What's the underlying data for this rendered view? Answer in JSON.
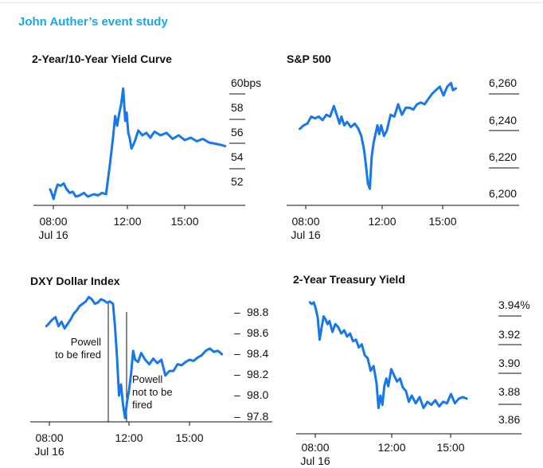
{
  "heading": "John Authers event study",
  "chart_data": [
    {
      "type": "line",
      "title": "2-Year/10-Year Yield Curve",
      "x_ticks": [
        "08:00",
        "12:00",
        "15:00"
      ],
      "x_sublabel": "Jul 16",
      "y_ticks": [
        "60bps",
        "58",
        "56",
        "54",
        "52"
      ],
      "ylim": [
        51,
        61
      ],
      "y_axis_side": "right",
      "series": [
        {
          "x": [
            7.83,
            7.9,
            8.0,
            8.1,
            8.2,
            8.35,
            8.5,
            8.65,
            8.8,
            8.95,
            9.1,
            9.3,
            9.5,
            9.7,
            9.85,
            10.0,
            10.2,
            10.4,
            10.6,
            10.8,
            10.95,
            11.05,
            11.15,
            11.25,
            11.35,
            11.45,
            11.55,
            11.62,
            11.7,
            11.78,
            11.86,
            11.95,
            12.05,
            12.2,
            12.4,
            12.6,
            12.8,
            13.0,
            13.3,
            13.6,
            13.9,
            14.2,
            14.5,
            14.8,
            15.1,
            15.4,
            15.7,
            16.0,
            16.3,
            16.5
          ],
          "y": [
            51.8,
            51.5,
            51.0,
            51.7,
            52.2,
            52.1,
            52.3,
            51.8,
            51.5,
            51.6,
            51.2,
            51.3,
            51.5,
            51.2,
            51.3,
            51.4,
            51.3,
            51.5,
            51.4,
            54.0,
            56.2,
            57.9,
            57.1,
            58.1,
            58.9,
            60.2,
            57.5,
            58.2,
            56.5,
            56.0,
            55.2,
            55.5,
            55.9,
            56.7,
            56.3,
            56.5,
            56.1,
            56.6,
            56.3,
            56.5,
            56.0,
            56.3,
            55.9,
            56.1,
            55.8,
            56.0,
            55.7,
            55.6,
            55.5,
            55.4
          ]
        }
      ]
    },
    {
      "type": "line",
      "title": "S&P 500",
      "x_ticks": [
        "08:00",
        "12:00",
        "15:00"
      ],
      "x_sublabel": "Jul 16",
      "y_ticks": [
        "6,260",
        "6,240",
        "6,220",
        "6,200"
      ],
      "ylim": [
        6198,
        6264
      ],
      "y_axis_side": "right",
      "series": [
        {
          "x": [
            7.9,
            8.1,
            8.3,
            8.5,
            8.7,
            8.9,
            9.1,
            9.3,
            9.5,
            9.7,
            9.85,
            10.0,
            10.1,
            10.25,
            10.4,
            10.6,
            10.8,
            11.0,
            11.15,
            11.3,
            11.4,
            11.5,
            11.6,
            11.7,
            11.8,
            11.9,
            12.0,
            12.1,
            12.2,
            12.35,
            12.5,
            12.7,
            12.9,
            13.1,
            13.3,
            13.5,
            13.7,
            13.9,
            14.1,
            14.3,
            14.5,
            14.7,
            14.9,
            15.1,
            15.3,
            15.5,
            15.7,
            15.9,
            16.0,
            16.15
          ],
          "y": [
            6236,
            6238,
            6239,
            6243,
            6242,
            6243,
            6241,
            6244,
            6243,
            6249,
            6244,
            6239,
            6243,
            6238,
            6240,
            6237,
            6239,
            6236,
            6232,
            6224,
            6215,
            6205,
            6202,
            6220,
            6228,
            6233,
            6238,
            6233,
            6238,
            6232,
            6235,
            6244,
            6243,
            6250,
            6244,
            6248,
            6248,
            6247,
            6250,
            6251,
            6250,
            6253,
            6256,
            6258,
            6260,
            6255,
            6260,
            6262,
            6258,
            6259
          ]
        }
      ]
    },
    {
      "type": "line",
      "title": "DXY Dollar Index",
      "x_ticks": [
        "08:00",
        "12:00",
        "15:00"
      ],
      "x_sublabel": "Jul 16",
      "y_ticks": [
        "98.8",
        "98.6",
        "98.4",
        "98.2",
        "98.0",
        "97.8"
      ],
      "ylim": [
        97.78,
        98.86
      ],
      "y_axis_side": "right",
      "annotations": [
        {
          "text": [
            "Powell",
            "to be fired"
          ],
          "x": 11.05
        },
        {
          "text": [
            "Powell",
            "not to be",
            "fired"
          ],
          "x": 11.95
        }
      ],
      "series": [
        {
          "x": [
            7.8,
            7.95,
            8.1,
            8.25,
            8.4,
            8.55,
            8.7,
            8.85,
            9.0,
            9.15,
            9.3,
            9.45,
            9.6,
            9.75,
            9.9,
            10.05,
            10.2,
            10.35,
            10.5,
            10.65,
            10.8,
            10.95,
            11.1,
            11.2,
            11.3,
            11.4,
            11.5,
            11.6,
            11.7,
            11.8,
            11.9,
            12.0,
            12.1,
            12.2,
            12.35,
            12.5,
            12.7,
            12.9,
            13.1,
            13.3,
            13.5,
            13.7,
            13.9,
            14.1,
            14.3,
            14.5,
            14.7,
            14.9,
            15.1,
            15.3,
            15.5,
            15.7,
            15.9,
            16.1,
            16.3,
            16.5
          ],
          "y": [
            98.62,
            98.65,
            98.68,
            98.7,
            98.62,
            98.66,
            98.6,
            98.64,
            98.68,
            98.73,
            98.76,
            98.8,
            98.82,
            98.84,
            98.88,
            98.86,
            98.82,
            98.83,
            98.86,
            98.85,
            98.83,
            98.84,
            98.82,
            98.62,
            98.35,
            98.0,
            98.1,
            97.92,
            97.8,
            97.95,
            98.05,
            98.2,
            98.4,
            98.32,
            98.3,
            98.38,
            98.32,
            98.28,
            98.33,
            98.29,
            98.32,
            98.18,
            98.22,
            98.22,
            98.28,
            98.27,
            98.3,
            98.32,
            98.31,
            98.34,
            98.36,
            98.4,
            98.42,
            98.39,
            98.4,
            98.37
          ]
        }
      ]
    },
    {
      "type": "line",
      "title": "2-Year Treasury Yield",
      "x_ticks": [
        "08:00",
        "12:00",
        "15:00"
      ],
      "x_sublabel": "Jul 16",
      "y_ticks": [
        "3.94%",
        "3.92",
        "3.90",
        "3.88",
        "3.86"
      ],
      "ylim": [
        3.865,
        3.945
      ],
      "y_axis_side": "right",
      "series": [
        {
          "x": [
            8.0,
            8.1,
            8.2,
            8.3,
            8.4,
            8.5,
            8.6,
            8.7,
            8.8,
            8.9,
            9.0,
            9.15,
            9.3,
            9.45,
            9.6,
            9.75,
            9.9,
            10.05,
            10.2,
            10.35,
            10.5,
            10.65,
            10.8,
            10.95,
            11.1,
            11.25,
            11.4,
            11.5,
            11.6,
            11.7,
            11.8,
            11.9,
            12.0,
            12.15,
            12.3,
            12.45,
            12.6,
            12.75,
            12.9,
            13.05,
            13.2,
            13.4,
            13.6,
            13.8,
            14.0,
            14.2,
            14.4,
            14.6,
            14.8,
            15.0,
            15.2,
            15.4,
            15.6,
            15.8,
            16.0
          ],
          "y": [
            3.944,
            3.943,
            3.944,
            3.94,
            3.934,
            3.92,
            3.928,
            3.935,
            3.933,
            3.93,
            3.932,
            3.925,
            3.93,
            3.928,
            3.924,
            3.926,
            3.922,
            3.924,
            3.919,
            3.92,
            3.915,
            3.917,
            3.91,
            3.908,
            3.9,
            3.903,
            3.892,
            3.876,
            3.884,
            3.878,
            3.89,
            3.895,
            3.89,
            3.901,
            3.897,
            3.893,
            3.895,
            3.889,
            3.887,
            3.88,
            3.884,
            3.879,
            3.883,
            3.876,
            3.88,
            3.878,
            3.881,
            3.877,
            3.88,
            3.879,
            3.885,
            3.879,
            3.882,
            3.883,
            3.882
          ]
        }
      ]
    }
  ]
}
